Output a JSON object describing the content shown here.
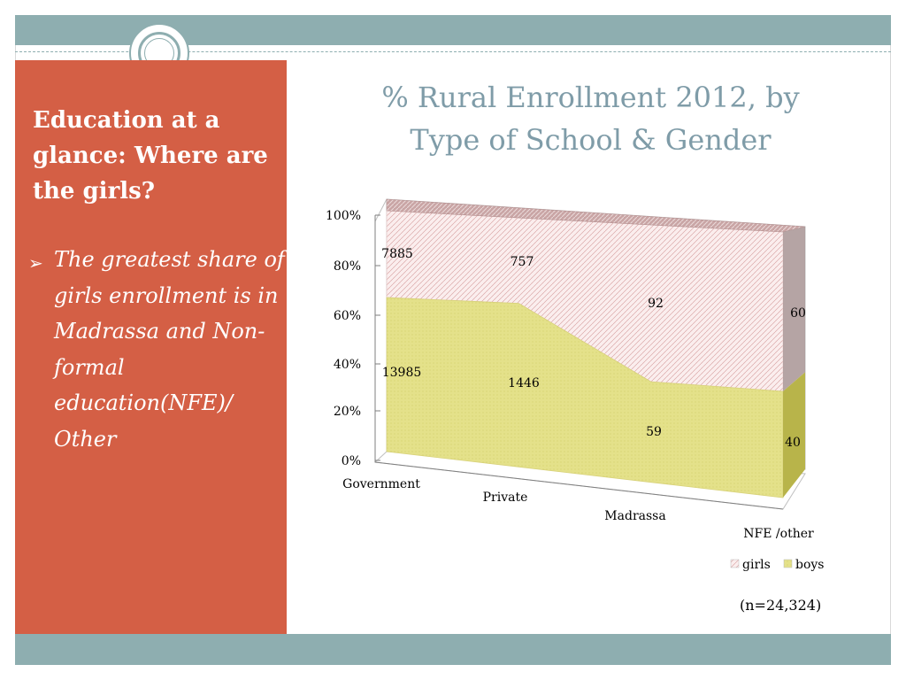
{
  "slide": {
    "side_title": "Education at a glance: Where are the girls?",
    "bullet_text": "The greatest share of girls enrollment is in Madrassa and Non-formal education(NFE)/ Other",
    "note": "(n=24,324)",
    "colors": {
      "panel": "#d45f45",
      "bars": "#8eaeb0",
      "title": "#7f9ca8"
    }
  },
  "chart_data": {
    "type": "area",
    "title": "% Rural Enrollment 2012, by Type of School & Gender",
    "categories": [
      "Government",
      "Private",
      "Madrassa",
      "NFE /other"
    ],
    "y_ticks": [
      "0%",
      "20%",
      "40%",
      "60%",
      "80%",
      "100%"
    ],
    "ylim": [
      0,
      100
    ],
    "stacked": "percent",
    "series": [
      {
        "name": "boys",
        "values": [
          13985,
          1446,
          59,
          40
        ],
        "color": "#e4e18a"
      },
      {
        "name": "girls",
        "values": [
          7885,
          757,
          92,
          60
        ],
        "color": "#fbeeee"
      }
    ],
    "legend": {
      "position": "bottom",
      "items": [
        "girls",
        "boys"
      ]
    },
    "grid": false,
    "three_d": true
  }
}
